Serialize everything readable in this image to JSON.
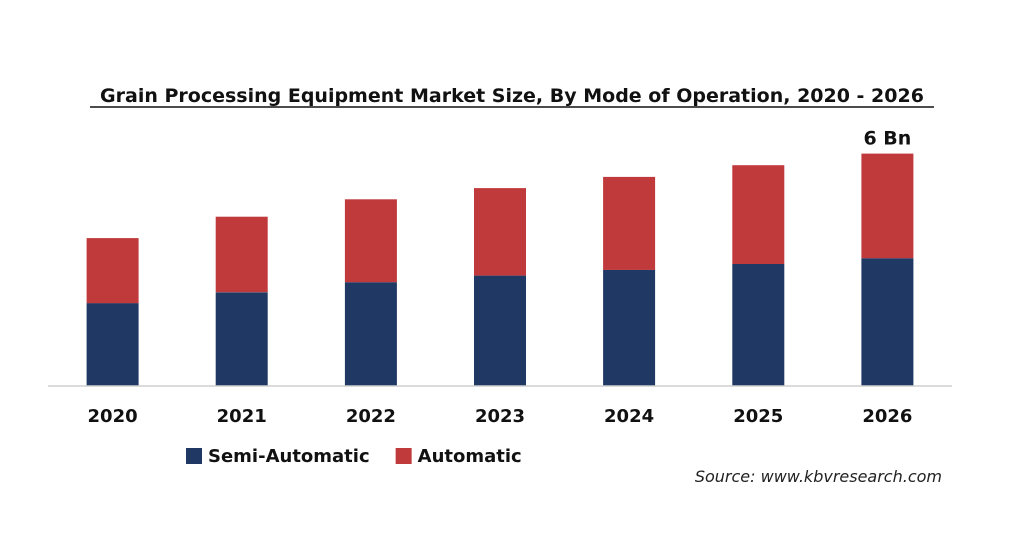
{
  "chart_data": {
    "type": "bar",
    "stacked": true,
    "title": "Grain Processing Equipment Market Size, By Mode of Operation, 2020 - 2026",
    "categories": [
      "2020",
      "2021",
      "2022",
      "2023",
      "2024",
      "2025",
      "2026"
    ],
    "series": [
      {
        "name": "Semi-Automatic",
        "color": "#1f3864",
        "values": [
          2.14,
          2.42,
          2.68,
          2.85,
          3.0,
          3.15,
          3.3
        ]
      },
      {
        "name": "Automatic",
        "color": "#c0393b",
        "values": [
          1.68,
          1.95,
          2.14,
          2.26,
          2.4,
          2.55,
          2.7
        ]
      }
    ],
    "data_labels": [
      {
        "category": "2026",
        "text": "6 Bn"
      }
    ],
    "ylim": [
      0,
      6.3
    ],
    "y_axis_visible": false,
    "grid": false,
    "legend_position": "bottom-left",
    "source": "Source: www.kbvresearch.com"
  }
}
